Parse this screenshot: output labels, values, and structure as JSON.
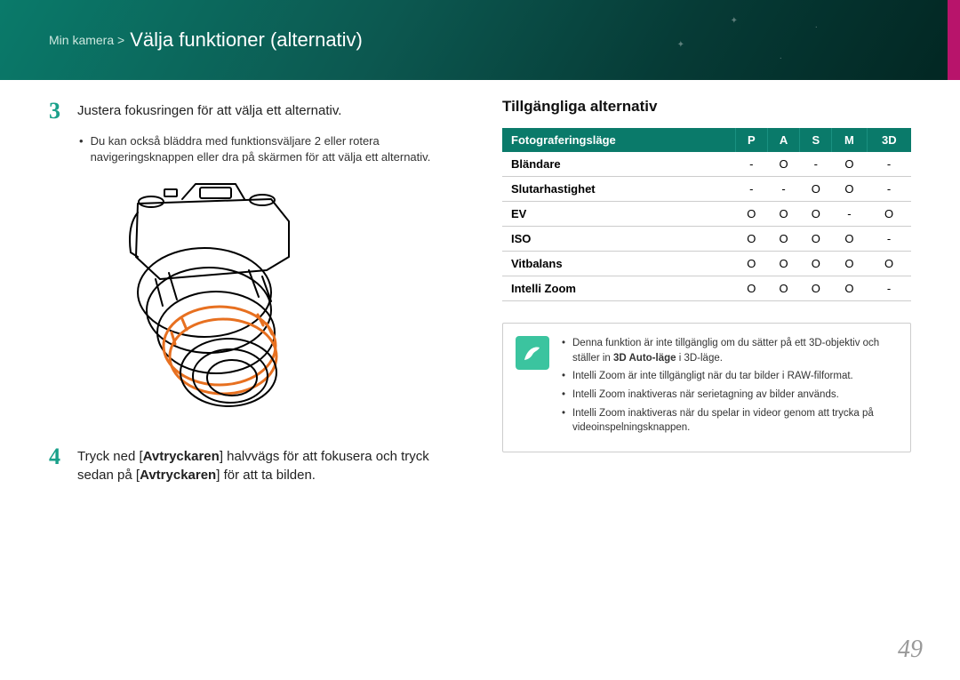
{
  "header": {
    "breadcrumb": "Min kamera >",
    "title": "Välja funktioner (alternativ)"
  },
  "left": {
    "step3": {
      "num": "3",
      "text": "Justera fokusringen för att välja ett alternativ.",
      "bullet": "Du kan också bläddra med funktionsväljare 2 eller rotera navigeringsknappen eller dra på skärmen för att välja ett alternativ."
    },
    "step4": {
      "num": "4",
      "text_before": "Tryck ned [",
      "bold1": "Avtryckaren",
      "mid": "] halvvägs för att fokusera och tryck sedan på [",
      "bold2": "Avtryckaren",
      "after": "] för att ta bilden."
    }
  },
  "right": {
    "section_title": "Tillgängliga alternativ",
    "headers": [
      "Fotograferingsläge",
      "P",
      "A",
      "S",
      "M",
      "3D"
    ],
    "rows": [
      {
        "label": "Bländare",
        "cells": [
          "-",
          "O",
          "-",
          "O",
          "-"
        ]
      },
      {
        "label": "Slutarhastighet",
        "cells": [
          "-",
          "-",
          "O",
          "O",
          "-"
        ]
      },
      {
        "label": "EV",
        "cells": [
          "O",
          "O",
          "O",
          "-",
          "O"
        ]
      },
      {
        "label": "ISO",
        "cells": [
          "O",
          "O",
          "O",
          "O",
          "-"
        ]
      },
      {
        "label": "Vitbalans",
        "cells": [
          "O",
          "O",
          "O",
          "O",
          "O"
        ]
      },
      {
        "label": "Intelli Zoom",
        "cells": [
          "O",
          "O",
          "O",
          "O",
          "-"
        ]
      }
    ],
    "notes": [
      {
        "before": "Denna funktion är inte tillgänglig om du sätter på ett 3D-objektiv och ställer in ",
        "bold": "3D Auto-läge",
        "after": " i 3D-läge."
      },
      {
        "before": "Intelli Zoom är inte tillgängligt när du tar bilder i RAW-filformat.",
        "bold": "",
        "after": ""
      },
      {
        "before": "Intelli Zoom inaktiveras när serietagning av bilder används.",
        "bold": "",
        "after": ""
      },
      {
        "before": "Intelli Zoom inaktiveras när du spelar in videor genom att trycka på videoinspelningsknappen.",
        "bold": "",
        "after": ""
      }
    ]
  },
  "page_number": "49",
  "colors": {
    "accent": "#1aa08a",
    "header_bg": "#0a7a6a",
    "orange": "#e77020"
  }
}
